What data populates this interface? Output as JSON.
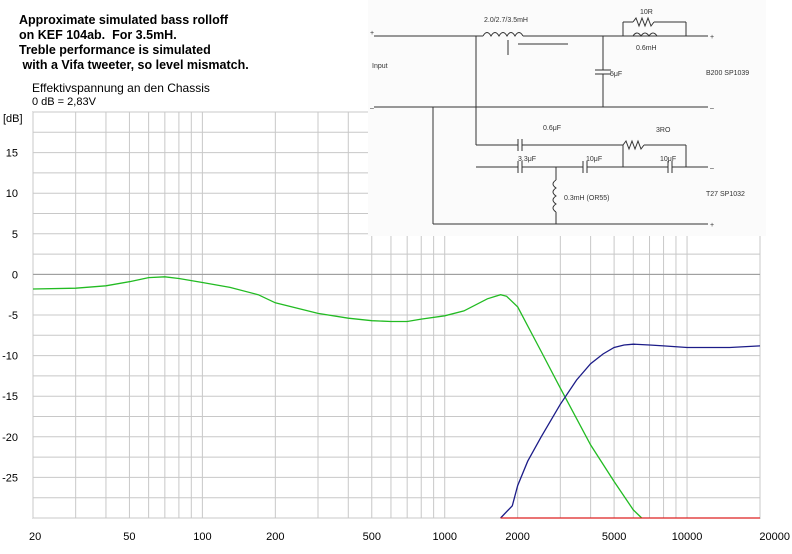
{
  "annotation": [
    "Approximate simulated bass rolloff",
    "on KEF 104ab.  For 3.5mH.",
    "Treble performance is simulated",
    " with a Vifa tweeter, so level mismatch."
  ],
  "chart_header": {
    "line1": "Effektivspannung an den Chassis",
    "line2": "0 dB = 2,83V",
    "unit": "[dB]"
  },
  "schematic": {
    "input_label": "Input",
    "plus": "+",
    "minus": "–",
    "inductor_main": "2.0/2.7/3.5mH",
    "resistor_1": "10R",
    "inductor_2": "0.6mH",
    "cap_5": "5μF",
    "woofer_label": "B200 SP1039",
    "cap_06": "0.6μF",
    "resistor_2": "3RO",
    "cap_33": "3.3μF",
    "cap_10a": "10μF",
    "cap_10b": "10μF",
    "inductor_3": "0.3mH (OR55)",
    "tweeter_label": "T27 SP1032"
  },
  "chart_data": {
    "type": "line",
    "x_scale": "log",
    "xlim": [
      20,
      20000
    ],
    "ylim": [
      -30,
      20
    ],
    "x_ticks": [
      {
        "v": 20,
        "label": "20"
      },
      {
        "v": 50,
        "label": "50"
      },
      {
        "v": 100,
        "label": "100"
      },
      {
        "v": 200,
        "label": "200"
      },
      {
        "v": 500,
        "label": "500"
      },
      {
        "v": 1000,
        "label": "1000"
      },
      {
        "v": 2000,
        "label": "2000"
      },
      {
        "v": 5000,
        "label": "5000"
      },
      {
        "v": 10000,
        "label": "10000"
      },
      {
        "v": 20000,
        "label": "20000"
      }
    ],
    "y_ticks": [
      {
        "v": 15,
        "label": "15"
      },
      {
        "v": 10,
        "label": "10"
      },
      {
        "v": 5,
        "label": "5"
      },
      {
        "v": 0,
        "label": "0"
      },
      {
        "v": -5,
        "label": "-5"
      },
      {
        "v": -10,
        "label": "-10"
      },
      {
        "v": -15,
        "label": "-15"
      },
      {
        "v": -20,
        "label": "-20"
      },
      {
        "v": -25,
        "label": "-25"
      }
    ],
    "grid": true,
    "series": [
      {
        "color": "#22bb22",
        "x": [
          20,
          30,
          40,
          50,
          60,
          70,
          80,
          100,
          130,
          170,
          200,
          300,
          400,
          500,
          600,
          700,
          800,
          1000,
          1200,
          1500,
          1700,
          1800,
          2000,
          2500,
          3000,
          4000,
          5000,
          6000,
          6500
        ],
        "y": [
          -1.8,
          -1.7,
          -1.4,
          -0.9,
          -0.4,
          -0.3,
          -0.5,
          -1.0,
          -1.6,
          -2.5,
          -3.5,
          -4.8,
          -5.4,
          -5.7,
          -5.8,
          -5.8,
          -5.5,
          -5.1,
          -4.5,
          -3.0,
          -2.5,
          -2.7,
          -4.0,
          -9.5,
          -14.0,
          -21.0,
          -25.5,
          -29.0,
          -30.0
        ]
      },
      {
        "color": "#1c1c88",
        "x": [
          1700,
          1900,
          2000,
          2200,
          2500,
          3000,
          3500,
          4000,
          4500,
          5000,
          5500,
          6000,
          7000,
          8000,
          10000,
          15000,
          20000
        ],
        "y": [
          -30.0,
          -28.5,
          -26.0,
          -23.0,
          -20.0,
          -16.0,
          -13.0,
          -11.0,
          -9.8,
          -9.0,
          -8.7,
          -8.6,
          -8.7,
          -8.8,
          -9.0,
          -9.0,
          -8.8
        ]
      },
      {
        "color": "#dd2222",
        "x": [
          1700,
          20000
        ],
        "y": [
          -30.0,
          -30.0
        ]
      }
    ]
  }
}
